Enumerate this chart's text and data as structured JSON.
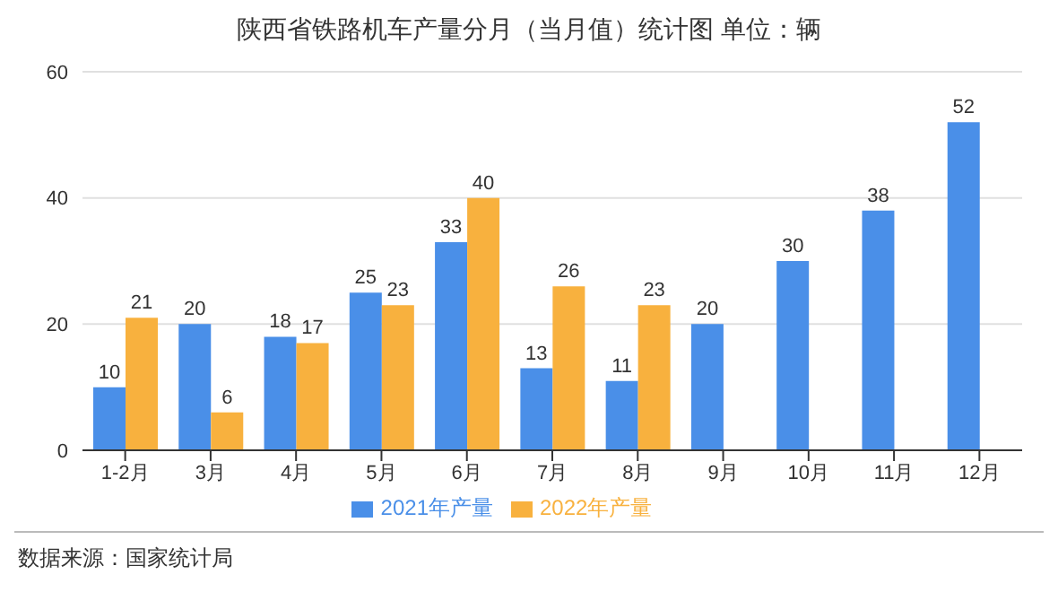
{
  "chart_data": {
    "type": "bar",
    "title": "陕西省铁路机车产量分月（当月值）统计图 单位：辆",
    "categories": [
      "1-2月",
      "3月",
      "4月",
      "5月",
      "6月",
      "7月",
      "8月",
      "9月",
      "10月",
      "11月",
      "12月"
    ],
    "series": [
      {
        "name": "2021年产量",
        "color": "#4a8fe8",
        "values": [
          10,
          20,
          18,
          25,
          33,
          13,
          11,
          20,
          30,
          38,
          52
        ]
      },
      {
        "name": "2022年产量",
        "color": "#f8b13e",
        "values": [
          21,
          6,
          17,
          23,
          40,
          26,
          23,
          null,
          null,
          null,
          null
        ]
      }
    ],
    "ylim": [
      0,
      60
    ],
    "yticks": [
      0,
      20,
      40,
      60
    ],
    "grid": "y",
    "legend": "bottom",
    "data_labels": true,
    "annotations": [
      "数据来源：国家统计局"
    ]
  }
}
